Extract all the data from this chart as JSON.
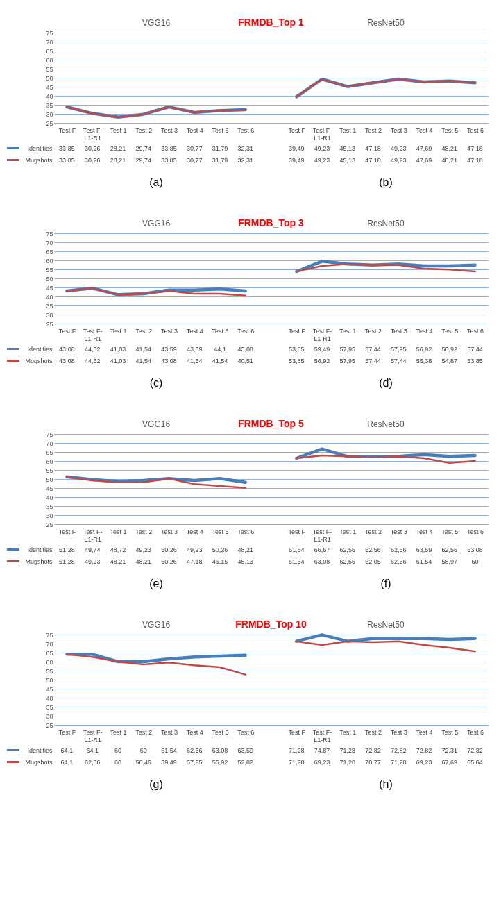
{
  "chart_data": [
    {
      "type": "line",
      "title": "FRMDB_Top 1",
      "annotations": [
        "VGG16",
        "ResNet50",
        "(a)",
        "(b)"
      ],
      "legend": "bottom left",
      "categories": [
        "Test F",
        "Test F-L1-R1",
        "Test 1",
        "Test 2",
        "Test 3",
        "Test 4",
        "Test 5",
        "Test 6",
        null,
        "Test F",
        "Test F-L1-R1",
        "Test 1",
        "Test 2",
        "Test 3",
        "Test 4",
        "Test 5",
        "Test 6"
      ],
      "series": [
        {
          "name": "Identities",
          "color": "#4a7ebb",
          "values": [
            33.85,
            30.26,
            28.21,
            29.74,
            33.85,
            30.77,
            31.79,
            32.31,
            null,
            39.49,
            49.23,
            45.13,
            47.18,
            49.23,
            47.69,
            48.21,
            47.18
          ],
          "value_labels": [
            "33,85",
            "30,26",
            "28,21",
            "29,74",
            "33,85",
            "30,77",
            "31,79",
            "32,31",
            null,
            "39,49",
            "49,23",
            "45,13",
            "47,18",
            "49,23",
            "47,69",
            "48,21",
            "47,18"
          ]
        },
        {
          "name": "Mugshots",
          "color": "#be4b48",
          "values": [
            33.85,
            30.26,
            28.21,
            29.74,
            33.85,
            30.77,
            31.79,
            32.31,
            null,
            39.49,
            49.23,
            45.13,
            47.18,
            49.23,
            47.69,
            48.21,
            47.18
          ],
          "value_labels": [
            "33,85",
            "30,26",
            "28,21",
            "29,74",
            "33,85",
            "30,77",
            "31,79",
            "32,31",
            null,
            "39,49",
            "49,23",
            "45,13",
            "47,18",
            "49,23",
            "47,69",
            "48,21",
            "47,18"
          ]
        }
      ],
      "ylim": [
        25,
        75
      ],
      "yticks": [
        25,
        30,
        35,
        40,
        45,
        50,
        55,
        60,
        65,
        70,
        75
      ],
      "grid": "y",
      "marker": "none",
      "line_style": "solid"
    },
    {
      "type": "line",
      "title": "FRMDB_Top 3",
      "annotations": [
        "VGG16",
        "ResNet50",
        "(c)",
        "(d)"
      ],
      "legend": "bottom left",
      "categories": [
        "Test F",
        "Test F-L1-R1",
        "Test 1",
        "Test 2",
        "Test 3",
        "Test 4",
        "Test 5",
        "Test 6",
        null,
        "Test F",
        "Test F-L1-R1",
        "Test 1",
        "Test 2",
        "Test 3",
        "Test 4",
        "Test 5",
        "Test 6"
      ],
      "series": [
        {
          "name": "Identities",
          "color": "#4a7ebb",
          "values": [
            43.08,
            44.62,
            41.03,
            41.54,
            43.59,
            43.59,
            44.1,
            43.08,
            null,
            53.85,
            59.49,
            57.95,
            57.44,
            57.95,
            56.92,
            56.92,
            57.44
          ],
          "value_labels": [
            "43,08",
            "44,62",
            "41,03",
            "41,54",
            "43,59",
            "43,59",
            "44,1",
            "43,08",
            null,
            "53,85",
            "59,49",
            "57,95",
            "57,44",
            "57,95",
            "56,92",
            "56,92",
            "57,44"
          ]
        },
        {
          "name": "Mugshots",
          "color": "#be4b48",
          "values": [
            43.08,
            44.62,
            41.03,
            41.54,
            43.08,
            41.54,
            41.54,
            40.51,
            null,
            53.85,
            56.92,
            57.95,
            57.44,
            57.44,
            55.38,
            54.87,
            53.85
          ],
          "value_labels": [
            "43,08",
            "44,62",
            "41,03",
            "41,54",
            "43,08",
            "41,54",
            "41,54",
            "40,51",
            null,
            "53,85",
            "56,92",
            "57,95",
            "57,44",
            "57,44",
            "55,38",
            "54,87",
            "53,85"
          ]
        }
      ],
      "ylim": [
        25,
        75
      ],
      "yticks": [
        25,
        30,
        35,
        40,
        45,
        50,
        55,
        60,
        65,
        70,
        75
      ],
      "grid": "y",
      "marker": "none",
      "line_style": "solid"
    },
    {
      "type": "line",
      "title": "FRMDB_Top 5",
      "annotations": [
        "VGG16",
        "ResNet50",
        "(e)",
        "(f)"
      ],
      "legend": "bottom left",
      "categories": [
        "Test F",
        "Test F-L1-R1",
        "Test 1",
        "Test 2",
        "Test 3",
        "Test 4",
        "Test 5",
        "Test 6",
        null,
        "Test F",
        "Test F-L1-R1",
        "Test 1",
        "Test 2",
        "Test 3",
        "Test 4",
        "Test 5",
        "Test 6"
      ],
      "series": [
        {
          "name": "Identities",
          "color": "#4a7ebb",
          "values": [
            51.28,
            49.74,
            48.72,
            49.23,
            50.26,
            49.23,
            50.26,
            48.21,
            null,
            61.54,
            66.67,
            62.56,
            62.56,
            62.56,
            63.59,
            62.56,
            63.08
          ],
          "value_labels": [
            "51,28",
            "49,74",
            "48,72",
            "49,23",
            "50,26",
            "49,23",
            "50,26",
            "48,21",
            null,
            "61,54",
            "66,67",
            "62,56",
            "62,56",
            "62,56",
            "63,59",
            "62,56",
            "63,08"
          ]
        },
        {
          "name": "Mugshots",
          "color": "#be4b48",
          "values": [
            51.28,
            49.23,
            48.21,
            48.21,
            50.26,
            47.18,
            46.15,
            45.13,
            null,
            61.54,
            63.08,
            62.56,
            62.05,
            62.56,
            61.54,
            58.97,
            60
          ],
          "value_labels": [
            "51,28",
            "49,23",
            "48,21",
            "48,21",
            "50,26",
            "47,18",
            "46,15",
            "45,13",
            null,
            "61,54",
            "63,08",
            "62,56",
            "62,05",
            "62,56",
            "61,54",
            "58,97",
            "60"
          ]
        }
      ],
      "ylim": [
        25,
        75
      ],
      "yticks": [
        25,
        30,
        35,
        40,
        45,
        50,
        55,
        60,
        65,
        70,
        75
      ],
      "grid": "y",
      "marker": "none",
      "line_style": "solid"
    },
    {
      "type": "line",
      "title": "FRMDB_Top 10",
      "annotations": [
        "VGG16",
        "ResNet50",
        "(g)",
        "(h)"
      ],
      "legend": "bottom left",
      "categories": [
        "Test F",
        "Test F-L1-R1",
        "Test 1",
        "Test 2",
        "Test 3",
        "Test 4",
        "Test 5",
        "Test 6",
        null,
        "Test F",
        "Test F-L1-R1",
        "Test 1",
        "Test 2",
        "Test 3",
        "Test 4",
        "Test 5",
        "Test 6"
      ],
      "series": [
        {
          "name": "Identities",
          "color": "#4a7ebb",
          "values": [
            64.1,
            64.1,
            60,
            60,
            61.54,
            62.56,
            63.08,
            63.59,
            null,
            71.28,
            74.87,
            71.28,
            72.82,
            72.82,
            72.82,
            72.31,
            72.82
          ],
          "value_labels": [
            "64,1",
            "64,1",
            "60",
            "60",
            "61,54",
            "62,56",
            "63,08",
            "63,59",
            null,
            "71,28",
            "74,87",
            "71,28",
            "72,82",
            "72,82",
            "72,82",
            "72,31",
            "72,82"
          ]
        },
        {
          "name": "Mugshots",
          "color": "#be4b48",
          "values": [
            64.1,
            62.56,
            60,
            58.46,
            59.49,
            57.95,
            56.92,
            52.82,
            null,
            71.28,
            69.23,
            71.28,
            70.77,
            71.28,
            69.23,
            67.69,
            65.64
          ],
          "value_labels": [
            "64,1",
            "62,56",
            "60",
            "58,46",
            "59,49",
            "57,95",
            "56,92",
            "52,82",
            null,
            "71,28",
            "69,23",
            "71,28",
            "70,77",
            "71,28",
            "69,23",
            "67,69",
            "65,64"
          ]
        }
      ],
      "ylim": [
        25,
        75
      ],
      "yticks": [
        25,
        30,
        35,
        40,
        45,
        50,
        55,
        60,
        65,
        70,
        75
      ],
      "grid": "y",
      "marker": "none",
      "line_style": "solid"
    }
  ]
}
